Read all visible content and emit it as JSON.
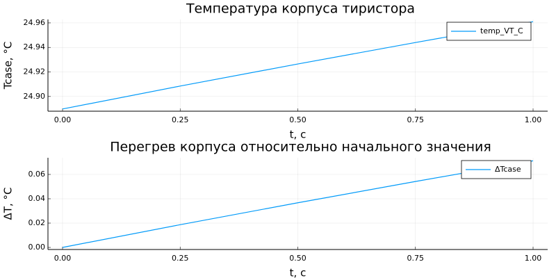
{
  "chart_data": [
    {
      "type": "line",
      "title": "Температура корпуса тиристора",
      "xlabel": "t, c",
      "ylabel": "Tcase, °C",
      "x": [
        0,
        0.25,
        0.5,
        0.75,
        1
      ],
      "series": [
        {
          "name": "temp_VT_C",
          "color": "#009af9",
          "values": [
            24.8898,
            24.9085,
            24.9265,
            24.944,
            24.961
          ]
        }
      ],
      "xlim": [
        -0.031,
        1.031
      ],
      "ylim": [
        24.888,
        24.9628
      ],
      "xticks": [
        {
          "value": 0,
          "label": "0.00"
        },
        {
          "value": 0.25,
          "label": "0.25"
        },
        {
          "value": 0.5,
          "label": "0.50"
        },
        {
          "value": 0.75,
          "label": "0.75"
        },
        {
          "value": 1,
          "label": "1.00"
        }
      ],
      "yticks": [
        {
          "value": 24.9,
          "label": "24.90"
        },
        {
          "value": 24.92,
          "label": "24.92"
        },
        {
          "value": 24.94,
          "label": "24.94"
        },
        {
          "value": 24.96,
          "label": "24.96"
        }
      ],
      "grid": true,
      "legend": "top-right"
    },
    {
      "type": "line",
      "title": "Перегрев корпуса относительно начального значения",
      "xlabel": "t, c",
      "ylabel": "ΔT, °C",
      "x": [
        0,
        0.25,
        0.5,
        0.75,
        1
      ],
      "series": [
        {
          "name": "ΔTcase",
          "color": "#009af9",
          "values": [
            0,
            0.0187,
            0.0367,
            0.0542,
            0.0712
          ]
        }
      ],
      "xlim": [
        -0.031,
        1.031
      ],
      "ylim": [
        -0.0017,
        0.0737
      ],
      "xticks": [
        {
          "value": 0,
          "label": "0.00"
        },
        {
          "value": 0.25,
          "label": "0.25"
        },
        {
          "value": 0.5,
          "label": "0.50"
        },
        {
          "value": 0.75,
          "label": "0.75"
        },
        {
          "value": 1,
          "label": "1.00"
        }
      ],
      "yticks": [
        {
          "value": 0,
          "label": "0.00"
        },
        {
          "value": 0.02,
          "label": "0.02"
        },
        {
          "value": 0.04,
          "label": "0.04"
        },
        {
          "value": 0.06,
          "label": "0.06"
        }
      ],
      "grid": true,
      "legend": "top-right"
    }
  ]
}
